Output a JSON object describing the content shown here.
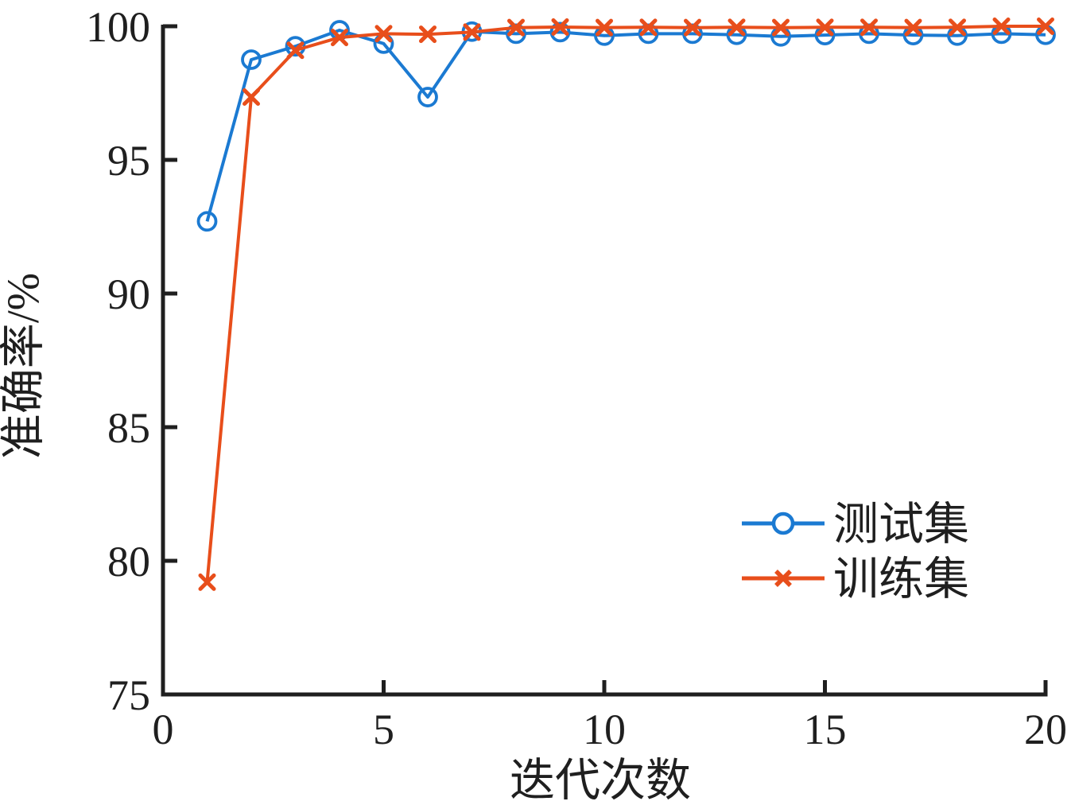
{
  "figure": {
    "background": "#ffffff",
    "axis_color": "#1f1f1f",
    "text_color": "#1f1f1f"
  },
  "chart_data": {
    "type": "line",
    "title": "",
    "xlabel": "迭代次数",
    "ylabel": "准确率/%",
    "xlim": [
      0,
      20
    ],
    "ylim": [
      75,
      100
    ],
    "x_ticks": [
      0,
      5,
      10,
      15,
      20
    ],
    "y_ticks": [
      75,
      80,
      85,
      90,
      95,
      100
    ],
    "grid": false,
    "legend_position": "lower-right",
    "x": [
      1,
      2,
      3,
      4,
      5,
      6,
      7,
      8,
      9,
      10,
      11,
      12,
      13,
      14,
      15,
      16,
      17,
      18,
      19,
      20
    ],
    "series": [
      {
        "name": "测试集",
        "color": "#1B7AD2",
        "marker": "circle",
        "values": [
          92.7,
          98.75,
          99.25,
          99.85,
          99.35,
          97.35,
          99.8,
          99.72,
          99.78,
          99.65,
          99.72,
          99.72,
          99.68,
          99.62,
          99.67,
          99.72,
          99.67,
          99.65,
          99.72,
          99.68
        ]
      },
      {
        "name": "训练集",
        "color": "#E84E1B",
        "marker": "x",
        "values": [
          79.2,
          97.35,
          99.1,
          99.58,
          99.72,
          99.7,
          99.78,
          99.95,
          99.97,
          99.95,
          99.96,
          99.95,
          99.96,
          99.95,
          99.96,
          99.96,
          99.95,
          99.96,
          100.0,
          100.0
        ]
      }
    ]
  }
}
